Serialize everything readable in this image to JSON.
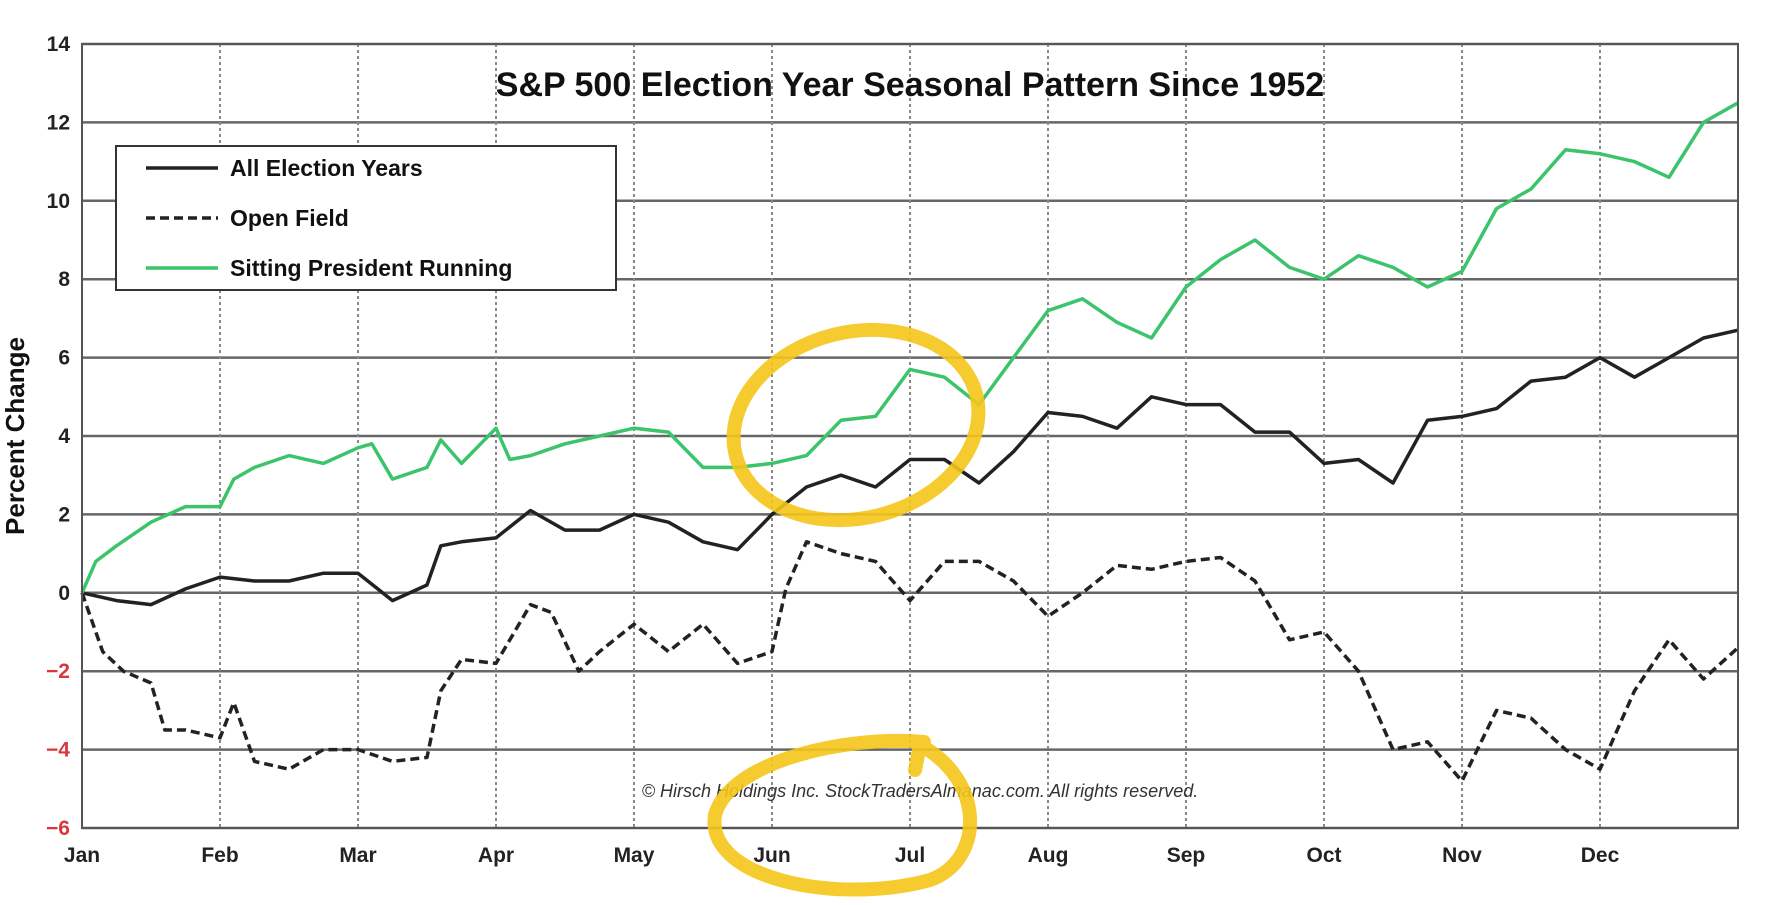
{
  "chart_data": {
    "type": "line",
    "title": "S&P 500 Election Year Seasonal Pattern Since 1952",
    "ylabel": "Percent Change",
    "xlabel": "",
    "ylim": [
      -6,
      14
    ],
    "yticks": [
      14,
      12,
      10,
      8,
      6,
      4,
      2,
      0,
      -2,
      -4,
      -6
    ],
    "negative_tick_color": "#d9363e",
    "x_categories": [
      "Jan",
      "Feb",
      "Mar",
      "Apr",
      "May",
      "Jun",
      "Jul",
      "Aug",
      "Sep",
      "Oct",
      "Nov",
      "Dec"
    ],
    "x_range": [
      0,
      12
    ],
    "grid": true,
    "legend_position": "top-left",
    "copyright": "© Hirsch  Holdings Inc. StockTradersAlmanac.com.  All rights reserved.",
    "series": [
      {
        "name": "All Election Years",
        "color": "#222222",
        "dash": "solid",
        "x": [
          0,
          0.25,
          0.5,
          0.75,
          1.0,
          1.25,
          1.5,
          1.75,
          2.0,
          2.25,
          2.5,
          2.6,
          2.75,
          3.0,
          3.25,
          3.5,
          3.75,
          4.0,
          4.25,
          4.5,
          4.75,
          5.0,
          5.25,
          5.5,
          5.75,
          6.0,
          6.25,
          6.5,
          6.75,
          7.0,
          7.25,
          7.5,
          7.75,
          8.0,
          8.25,
          8.5,
          8.75,
          9.0,
          9.25,
          9.5,
          9.75,
          10.0,
          10.25,
          10.5,
          10.75,
          11.0,
          11.25,
          11.5,
          11.75,
          12.0
        ],
        "y": [
          0,
          -0.2,
          -0.3,
          0.1,
          0.4,
          0.3,
          0.3,
          0.5,
          0.5,
          -0.2,
          0.2,
          1.2,
          1.3,
          1.4,
          2.1,
          1.6,
          1.6,
          2.0,
          1.8,
          1.3,
          1.1,
          2.0,
          2.7,
          3.0,
          2.7,
          3.4,
          3.4,
          2.8,
          3.6,
          4.6,
          4.5,
          4.2,
          5.0,
          4.8,
          4.8,
          4.1,
          4.1,
          3.3,
          3.4,
          2.8,
          4.4,
          4.5,
          4.7,
          5.4,
          5.5,
          6.0,
          5.5,
          6.0,
          6.5,
          6.7
        ]
      },
      {
        "name": "Open Field",
        "color": "#222222",
        "dash": "dashed",
        "x": [
          0,
          0.15,
          0.3,
          0.5,
          0.6,
          0.75,
          1.0,
          1.1,
          1.25,
          1.5,
          1.75,
          2.0,
          2.25,
          2.5,
          2.6,
          2.75,
          3.0,
          3.25,
          3.4,
          3.6,
          3.75,
          4.0,
          4.25,
          4.5,
          4.75,
          5.0,
          5.1,
          5.25,
          5.5,
          5.75,
          6.0,
          6.25,
          6.5,
          6.75,
          7.0,
          7.25,
          7.5,
          7.75,
          8.0,
          8.25,
          8.5,
          8.75,
          9.0,
          9.25,
          9.5,
          9.75,
          10.0,
          10.25,
          10.5,
          10.75,
          11.0,
          11.25,
          11.5,
          11.75,
          12.0
        ],
        "y": [
          0,
          -1.5,
          -2.0,
          -2.3,
          -3.5,
          -3.5,
          -3.7,
          -2.8,
          -4.3,
          -4.5,
          -4.0,
          -4.0,
          -4.3,
          -4.2,
          -2.5,
          -1.7,
          -1.8,
          -0.3,
          -0.5,
          -2.0,
          -1.5,
          -0.8,
          -1.5,
          -0.8,
          -1.8,
          -1.5,
          0.1,
          1.3,
          1.0,
          0.8,
          -0.2,
          0.8,
          0.8,
          0.3,
          -0.6,
          0.0,
          0.7,
          0.6,
          0.8,
          0.9,
          0.3,
          -1.2,
          -1.0,
          -2.0,
          -4.0,
          -3.8,
          -4.8,
          -3.0,
          -3.2,
          -4.0,
          -4.5,
          -2.5,
          -1.2,
          -2.2,
          -1.4
        ]
      },
      {
        "name": "Sitting President Running",
        "color": "#3cc46b",
        "dash": "solid",
        "x": [
          0,
          0.1,
          0.25,
          0.5,
          0.75,
          1.0,
          1.1,
          1.25,
          1.5,
          1.75,
          2.0,
          2.1,
          2.25,
          2.5,
          2.6,
          2.75,
          3.0,
          3.1,
          3.25,
          3.5,
          3.75,
          4.0,
          4.25,
          4.5,
          4.75,
          5.0,
          5.25,
          5.5,
          5.75,
          6.0,
          6.25,
          6.5,
          6.75,
          7.0,
          7.25,
          7.5,
          7.75,
          8.0,
          8.25,
          8.5,
          8.75,
          9.0,
          9.25,
          9.5,
          9.75,
          10.0,
          10.25,
          10.5,
          10.75,
          11.0,
          11.25,
          11.5,
          11.75,
          12.0
        ],
        "y": [
          0,
          0.8,
          1.2,
          1.8,
          2.2,
          2.2,
          2.9,
          3.2,
          3.5,
          3.3,
          3.7,
          3.8,
          2.9,
          3.2,
          3.9,
          3.3,
          4.2,
          3.4,
          3.5,
          3.8,
          4.0,
          4.2,
          4.1,
          3.2,
          3.2,
          3.3,
          3.5,
          4.4,
          4.5,
          5.7,
          5.5,
          4.8,
          6.0,
          7.2,
          7.5,
          6.9,
          6.5,
          7.8,
          8.5,
          9.0,
          8.3,
          8.0,
          8.6,
          8.3,
          7.8,
          8.2,
          9.8,
          10.3,
          11.3,
          11.2,
          11.0,
          10.6,
          12.0,
          12.5
        ]
      }
    ]
  },
  "annotations": {
    "highlight_color": "#f5c518"
  }
}
